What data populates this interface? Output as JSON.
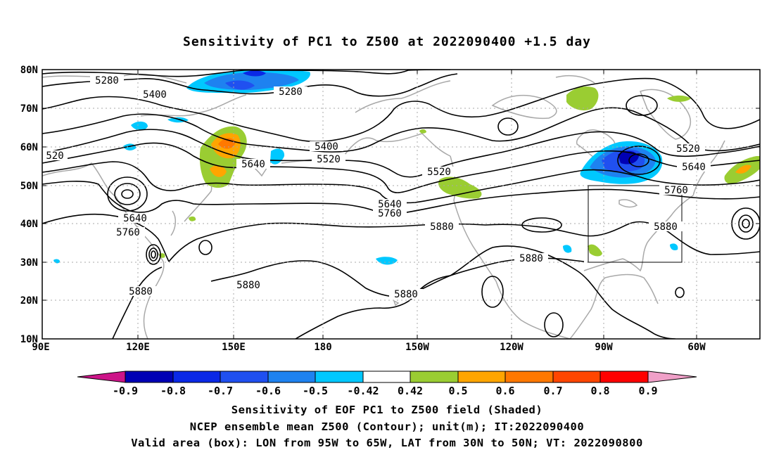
{
  "title": "Sensitivity of PC1 to Z500 at 2022090400 +1.5 day",
  "map": {
    "lat_labels": [
      "80N",
      "70N",
      "60N",
      "50N",
      "40N",
      "30N",
      "20N",
      "10N"
    ],
    "lon_labels": [
      "90E",
      "120E",
      "150E",
      "180",
      "150W",
      "120W",
      "90W",
      "60W"
    ],
    "contour_labels": [
      "5280",
      "5400",
      "5280",
      "5400",
      "520",
      "5520",
      "5640",
      "5520",
      "5520",
      "5640",
      "5760",
      "5640",
      "5760",
      "5640",
      "5760",
      "5880",
      "5880",
      "5880",
      "5880",
      "5880",
      "5880"
    ],
    "valid_box": {
      "lon_west": "95W",
      "lon_east": "65W",
      "lat_south": "30N",
      "lat_north": "50N"
    }
  },
  "colorbar": {
    "labels": [
      "-0.9",
      "-0.8",
      "-0.7",
      "-0.6",
      "-0.5",
      "-0.42",
      "0.42",
      "0.5",
      "0.6",
      "0.7",
      "0.8",
      "0.9"
    ],
    "colors": [
      "#0000b4",
      "#0a28e6",
      "#2050f0",
      "#1e82f0",
      "#00c8ff",
      "#ffffff",
      "#9acd32",
      "#ffa500",
      "#ff7800",
      "#ff4600",
      "#ff0000"
    ],
    "low_end_color": "#cc1488",
    "high_end_color": "#f0a0c8"
  },
  "captions": {
    "line1": "Sensitivity of EOF PC1 to Z500 field (Shaded)",
    "line2": "NCEP ensemble mean Z500 (Contour); unit(m); IT:2022090400",
    "line3": "Valid area (box): LON from 95W to 65W, LAT from 30N to 50N; VT: 2022090800"
  }
}
